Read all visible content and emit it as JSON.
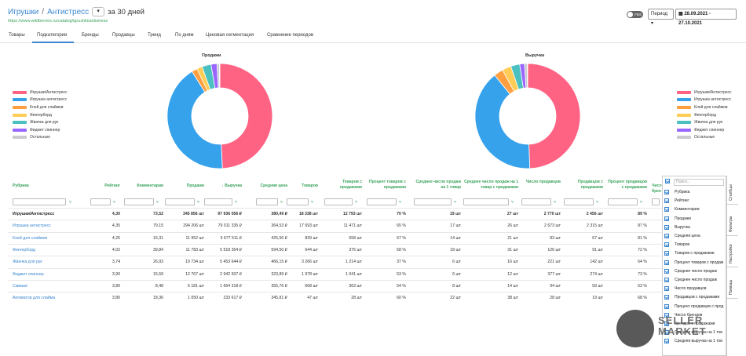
{
  "header": {
    "crumb1": "Игрушки",
    "sep": "/",
    "crumb2": "Антистресс",
    "dd": "▾",
    "period": "за 30 дней",
    "url": "https://www.wildberries.ru/catalog/igrushki/antistress"
  },
  "controls": {
    "toggle": "FBS",
    "period_select": "Период",
    "date_range": "28.09.2021 - 27.10.2021"
  },
  "tabs": [
    "Товары",
    "Подкатегории",
    "Бренды",
    "Продавцы",
    "Тренд",
    "По дням",
    "Ценовая сегментация",
    "Сравнение периодов"
  ],
  "legend": [
    "Игрушки/Антистресс",
    "Игрушка антистресс",
    "Клей для слаймов",
    "Фингерборд",
    "Жвачка для рук",
    "Фиджет спиннер",
    "Остальные"
  ],
  "legend_colors": [
    "#ff6384",
    "#36a2eb",
    "#ff9f40",
    "#ffcd56",
    "#4bc0c0",
    "#9966ff",
    "#c9cbcf"
  ],
  "charts": {
    "sales": {
      "title": "Продажи",
      "values": [
        345856,
        294206,
        11952,
        11783,
        19734,
        12767,
        5181,
        1050
      ]
    },
    "revenue": {
      "title": "Выручка",
      "values": [
        97936056,
        79011335,
        5677511,
        5518354,
        5453644,
        2942507,
        1664318,
        233617
      ]
    }
  },
  "table": {
    "headers": [
      "Рубрика",
      "Рейтинг",
      "Комментарии",
      "Продажи",
      "↓ Выручка",
      "Средняя цена",
      "Товаров",
      "Товаров с продажами",
      "Процент товаров с продажами",
      "Среднее число продаж на 1 товар",
      "Среднее число продаж на 1 товар с продажами",
      "Число продавцов",
      "Продавцов с продажами",
      "Процент продавцов с продажами",
      "Числ брен"
    ],
    "rows": [
      [
        "Игрушки/Антистресс",
        "4,30",
        "73,52",
        "345 856 шт",
        "97 936 056 ₽",
        "380,49 ₽",
        "18 338 шт",
        "12 793 шт",
        "70 %",
        "19 шт",
        "27 шт",
        "2 770 шт",
        "2 456 шт",
        "89 %"
      ],
      [
        "Игрушка антистресс",
        "4,35",
        "79,15",
        "294 206 шт",
        "79 011 335 ₽",
        "364,53 ₽",
        "17 693 шт",
        "11 471 шт",
        "65 %",
        "17 шт",
        "26 шт",
        "2 673 шт",
        "2 315 шт",
        "87 %"
      ],
      [
        "Клей для слаймов",
        "4,26",
        "16,31",
        "11 952 шт",
        "5 677 511 ₽",
        "425,50 ₽",
        "839 шт",
        "558 шт",
        "67 %",
        "14 шт",
        "21 шт",
        "83 шт",
        "67 шт",
        "81 %"
      ],
      [
        "Фингерборд",
        "4,02",
        "39,84",
        "11 783 шт",
        "5 518 354 ₽",
        "594,50 ₽",
        "644 шт",
        "376 шт",
        "58 %",
        "18 шт",
        "31 шт",
        "126 шт",
        "91 шт",
        "72 %"
      ],
      [
        "Жвачка для рук",
        "3,74",
        "26,93",
        "19 734 шт",
        "5 453 644 ₽",
        "466,15 ₽",
        "3 266 шт",
        "1 214 шт",
        "37 %",
        "6 шт",
        "16 шт",
        "221 шт",
        "142 шт",
        "64 %"
      ],
      [
        "Фиджет спиннер",
        "3,90",
        "15,59",
        "12 767 шт",
        "2 942 507 ₽",
        "323,89 ₽",
        "1 978 шт",
        "1 041 шт",
        "53 %",
        "6 шт",
        "12 шт",
        "377 шт",
        "274 шт",
        "73 %"
      ],
      [
        "Сквиши",
        "3,80",
        "8,48",
        "5 181 шт",
        "1 664 318 ₽",
        "355,76 ₽",
        "668 шт",
        "363 шт",
        "54 %",
        "8 шт",
        "14 шт",
        "94 шт",
        "59 шт",
        "63 %"
      ],
      [
        "Активатор для слайма",
        "3,80",
        "18,36",
        "1 050 шт",
        "233 617 ₽",
        "345,81 ₽",
        "47 шт",
        "28 шт",
        "60 %",
        "22 шт",
        "38 шт",
        "28 шт",
        "19 шт",
        "68 %"
      ]
    ]
  },
  "column_panel": {
    "search_placeholder": "Поиск...",
    "items": [
      "Рубрика",
      "Рейтинг",
      "Комментарии",
      "Продажи",
      "Выручка",
      "Средняя цена",
      "Товаров",
      "Товаров с продажами",
      "Процент товаров с продаж",
      "Среднее число продаж",
      "Среднее число продаж",
      "Число продавцов",
      "Продавцов с продажами",
      "Процент продавцов с прод",
      "Число брендов",
      "Брендов с продажами",
      "Средняя выручка на 1 тов",
      "Средняя выручка на 1 тов"
    ]
  },
  "side_tabs": [
    "Столбцы",
    "Фильтры",
    "Настройки",
    "Помощь"
  ],
  "watermark": "SELLER MARKET"
}
